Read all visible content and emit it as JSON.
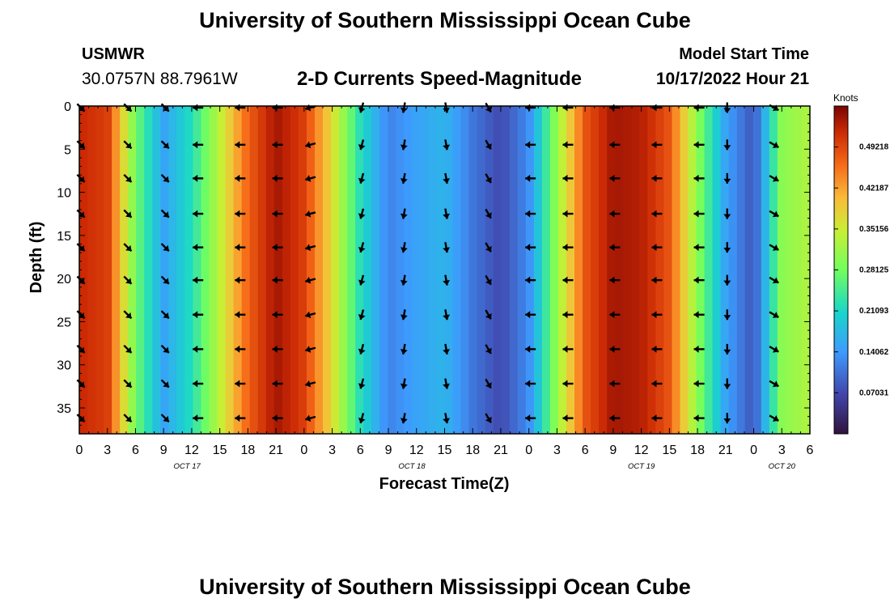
{
  "header": {
    "title": "University of Southern Mississippi Ocean Cube",
    "station": "USMWR",
    "coords": "30.0757N  88.7961W",
    "subtitle": "2-D Currents Speed-Magnitude",
    "model_start_label": "Model Start Time",
    "model_start_value": "10/17/2022 Hour 21"
  },
  "footer": {
    "title": "University of Southern Mississippi Ocean Cube"
  },
  "chart_data": {
    "type": "heatmap",
    "title": "2-D Currents Speed-Magnitude",
    "xlabel": "Forecast Time(Z)",
    "ylabel": "Depth (ft)",
    "x_tick_labels": [
      "0",
      "3",
      "6",
      "9",
      "12",
      "15",
      "18",
      "21",
      "0",
      "3",
      "6",
      "9",
      "12",
      "15",
      "18",
      "21",
      "0",
      "3",
      "6",
      "9",
      "12",
      "15",
      "18",
      "21",
      "0",
      "3",
      "6"
    ],
    "date_labels": [
      "OCT 17",
      "OCT 18",
      "OCT 19",
      "OCT 20"
    ],
    "x_range_hours": [
      0,
      78
    ],
    "y_ticks": [
      0,
      5,
      10,
      15,
      20,
      25,
      30,
      35
    ],
    "y_tick_labels": [
      "0",
      "5",
      "10",
      "15",
      "20",
      "25",
      "30",
      "35"
    ],
    "ylim": [
      0,
      38
    ],
    "y_inverted": true,
    "colorbar": {
      "unit": "Knots",
      "ticks": [
        "0.07031",
        "0.14062",
        "0.21093",
        "0.28125",
        "0.35156",
        "0.42187",
        "0.49218"
      ],
      "range": [
        0,
        0.5625
      ]
    },
    "speed_profile_hours": [
      0,
      3,
      6,
      9,
      12,
      15,
      18,
      21,
      24,
      27,
      30,
      33,
      36,
      39,
      42,
      45,
      48,
      51,
      54,
      57,
      60,
      63,
      66,
      69,
      72,
      75,
      78
    ],
    "speed_profile_knots": [
      0.52,
      0.5,
      0.28,
      0.15,
      0.22,
      0.34,
      0.47,
      0.54,
      0.5,
      0.37,
      0.22,
      0.12,
      0.15,
      0.17,
      0.11,
      0.07,
      0.13,
      0.31,
      0.48,
      0.54,
      0.53,
      0.48,
      0.3,
      0.15,
      0.08,
      0.3,
      0.33
    ],
    "arrow_columns_hours": [
      0,
      5,
      9,
      12.5,
      17,
      21,
      24.5,
      30,
      34.5,
      39,
      43.5,
      48,
      52,
      57,
      61.5,
      66,
      69,
      74
    ],
    "arrow_angles_deg": [
      -45,
      -45,
      -45,
      180,
      180,
      180,
      -165,
      -105,
      -100,
      -80,
      -60,
      180,
      180,
      180,
      180,
      180,
      -90,
      -30
    ],
    "arrow_depths_ft": [
      0,
      4.3,
      8.2,
      12.3,
      16.2,
      20,
      24,
      28,
      32,
      36
    ]
  }
}
